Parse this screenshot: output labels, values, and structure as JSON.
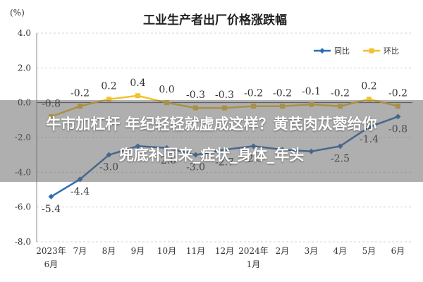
{
  "chart_data": {
    "type": "line",
    "title": "工业生产者出厂价格涨跌幅",
    "ylabel": "(%)",
    "xlabel": "",
    "ylim": [
      -8.0,
      4.0
    ],
    "y_ticks": [
      "4.0",
      "2.0",
      "0.0",
      "-2.0",
      "-4.0",
      "-6.0",
      "-8.0"
    ],
    "categories": [
      "2023年6月",
      "7月",
      "8月",
      "9月",
      "10月",
      "11月",
      "12月",
      "2024年1月",
      "2月",
      "3月",
      "4月",
      "5月",
      "6月"
    ],
    "x_labels": [
      {
        "line1": "2023年",
        "line2": "6月"
      },
      {
        "line1": "7月",
        "line2": ""
      },
      {
        "line1": "8月",
        "line2": ""
      },
      {
        "line1": "9月",
        "line2": ""
      },
      {
        "line1": "10月",
        "line2": ""
      },
      {
        "line1": "11月",
        "line2": ""
      },
      {
        "line1": "12月",
        "line2": ""
      },
      {
        "line1": "2024年",
        "line2": "1月"
      },
      {
        "line1": "2月",
        "line2": ""
      },
      {
        "line1": "3月",
        "line2": ""
      },
      {
        "line1": "4月",
        "line2": ""
      },
      {
        "line1": "5月",
        "line2": ""
      },
      {
        "line1": "6月",
        "line2": ""
      }
    ],
    "series": [
      {
        "name": "同比",
        "color": "#2e6db4",
        "values": [
          -5.4,
          -4.4,
          -3.0,
          -2.5,
          -2.6,
          -3.0,
          -2.7,
          -2.5,
          -2.7,
          -2.8,
          -2.5,
          -1.4,
          -0.8
        ],
        "labels": [
          "-5.4",
          "-4.4",
          "-3.0",
          "",
          "-2.6",
          "-3.0",
          "-2.7",
          "-2.5",
          "",
          "",
          "-2.5",
          "-1.4",
          "-0.8"
        ]
      },
      {
        "name": "环比",
        "color": "#f2c12e",
        "values": [
          -0.8,
          -0.2,
          0.2,
          0.4,
          0.0,
          -0.3,
          -0.3,
          -0.2,
          -0.2,
          -0.1,
          -0.2,
          0.2,
          -0.2
        ],
        "labels": [
          "-0.8",
          "-0.2",
          "0.2",
          "0.4",
          "0.0",
          "-0.3",
          "-0.3",
          "-0.2",
          "-0.2",
          "-0.1",
          "-0.2",
          "0.2",
          "-0.2"
        ]
      }
    ],
    "grid": true,
    "legend": "top-right"
  },
  "overlay": {
    "line1": "牛市加杠杆 年纪轻轻就虚成这样？黄芪肉苁蓉给你",
    "line2": "兜底补回来_症状_身体_年头"
  }
}
